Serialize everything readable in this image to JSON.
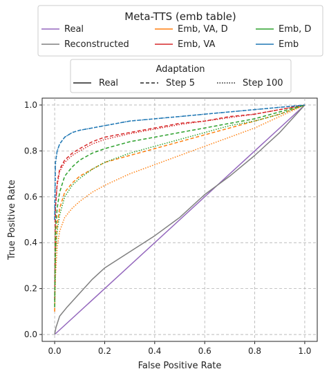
{
  "chart_data": {
    "type": "line",
    "title": "",
    "xlabel": "False Positive Rate",
    "ylabel": "True Positive Rate",
    "xlim": [
      -0.05,
      1.05
    ],
    "ylim": [
      -0.03,
      1.03
    ],
    "xticks": [
      0.0,
      0.2,
      0.4,
      0.6,
      0.8,
      1.0
    ],
    "yticks": [
      0.0,
      0.2,
      0.4,
      0.6,
      0.8,
      1.0
    ],
    "tick_labels": [
      "0.0",
      "0.2",
      "0.4",
      "0.6",
      "0.8",
      "1.0"
    ],
    "grid": true,
    "legend_series": {
      "title": "Meta-TTS (emb table)",
      "placement": "top",
      "entries": [
        {
          "name": "Real",
          "color": "#9467bd"
        },
        {
          "name": "Reconstructed",
          "color": "#7f7f7f"
        },
        {
          "name": "Emb, VA, D",
          "color": "#ff7f0e"
        },
        {
          "name": "Emb, VA",
          "color": "#d62728"
        },
        {
          "name": "Emb, D",
          "color": "#2ca02c"
        },
        {
          "name": "Emb",
          "color": "#1f77b4"
        }
      ]
    },
    "legend_style": {
      "title": "Adaptation",
      "placement": "top",
      "entries": [
        {
          "name": "Real",
          "dash": "solid"
        },
        {
          "name": "Step 5",
          "dash": "dashed"
        },
        {
          "name": "Step 100",
          "dash": "dotted"
        }
      ]
    },
    "series": [
      {
        "name": "Real",
        "color": "#9467bd",
        "dash": "solid",
        "x": [
          0,
          1
        ],
        "y": [
          0,
          1
        ]
      },
      {
        "name": "Reconstructed",
        "color": "#7f7f7f",
        "dash": "solid",
        "x": [
          0,
          0.005,
          0.02,
          0.05,
          0.1,
          0.15,
          0.2,
          0.3,
          0.4,
          0.5,
          0.6,
          0.7,
          0.8,
          0.9,
          0.95,
          1.0
        ],
        "y": [
          0,
          0.03,
          0.08,
          0.12,
          0.18,
          0.24,
          0.29,
          0.36,
          0.43,
          0.51,
          0.61,
          0.69,
          0.78,
          0.88,
          0.94,
          1.0
        ]
      },
      {
        "name": "Emb, VA, D",
        "color": "#ff7f0e",
        "dash": "dashed",
        "x": [
          0,
          0.003,
          0.01,
          0.02,
          0.04,
          0.07,
          0.1,
          0.15,
          0.2,
          0.3,
          0.4,
          0.5,
          0.6,
          0.7,
          0.8,
          0.9,
          1.0
        ],
        "y": [
          0.1,
          0.35,
          0.48,
          0.55,
          0.62,
          0.66,
          0.69,
          0.72,
          0.75,
          0.78,
          0.81,
          0.84,
          0.87,
          0.9,
          0.93,
          0.96,
          1.0
        ]
      },
      {
        "name": "Emb, VA, D",
        "color": "#ff7f0e",
        "dash": "dotted",
        "x": [
          0,
          0.003,
          0.01,
          0.02,
          0.04,
          0.07,
          0.1,
          0.15,
          0.2,
          0.3,
          0.4,
          0.5,
          0.6,
          0.7,
          0.8,
          0.9,
          1.0
        ],
        "y": [
          0.1,
          0.25,
          0.38,
          0.45,
          0.51,
          0.55,
          0.58,
          0.62,
          0.65,
          0.7,
          0.74,
          0.78,
          0.82,
          0.86,
          0.9,
          0.95,
          1.0
        ]
      },
      {
        "name": "Emb, VA",
        "color": "#d62728",
        "dash": "dashed",
        "x": [
          0,
          0.003,
          0.01,
          0.02,
          0.04,
          0.07,
          0.1,
          0.15,
          0.2,
          0.3,
          0.4,
          0.5,
          0.6,
          0.7,
          0.8,
          0.9,
          1.0
        ],
        "y": [
          0.15,
          0.55,
          0.66,
          0.72,
          0.76,
          0.79,
          0.81,
          0.84,
          0.86,
          0.88,
          0.9,
          0.92,
          0.93,
          0.95,
          0.96,
          0.98,
          1.0
        ]
      },
      {
        "name": "Emb, VA",
        "color": "#d62728",
        "dash": "dotted",
        "x": [
          0,
          0.003,
          0.01,
          0.02,
          0.04,
          0.07,
          0.1,
          0.15,
          0.2,
          0.3,
          0.4,
          0.5,
          0.6,
          0.7,
          0.8,
          0.9,
          1.0
        ],
        "y": [
          0.15,
          0.55,
          0.65,
          0.71,
          0.75,
          0.78,
          0.8,
          0.83,
          0.85,
          0.875,
          0.895,
          0.915,
          0.93,
          0.945,
          0.96,
          0.98,
          1.0
        ]
      },
      {
        "name": "Emb, D",
        "color": "#2ca02c",
        "dash": "dashed",
        "x": [
          0,
          0.003,
          0.01,
          0.02,
          0.04,
          0.07,
          0.1,
          0.15,
          0.2,
          0.3,
          0.4,
          0.5,
          0.6,
          0.7,
          0.8,
          0.9,
          1.0
        ],
        "y": [
          0.12,
          0.45,
          0.55,
          0.62,
          0.69,
          0.73,
          0.76,
          0.79,
          0.81,
          0.84,
          0.86,
          0.88,
          0.9,
          0.92,
          0.94,
          0.97,
          1.0
        ]
      },
      {
        "name": "Emb, D",
        "color": "#2ca02c",
        "dash": "dotted",
        "x": [
          0,
          0.003,
          0.01,
          0.02,
          0.04,
          0.07,
          0.1,
          0.15,
          0.2,
          0.3,
          0.4,
          0.5,
          0.6,
          0.7,
          0.8,
          0.9,
          1.0
        ],
        "y": [
          0.12,
          0.35,
          0.45,
          0.52,
          0.6,
          0.65,
          0.68,
          0.72,
          0.75,
          0.79,
          0.82,
          0.85,
          0.88,
          0.91,
          0.93,
          0.96,
          1.0
        ]
      },
      {
        "name": "Emb",
        "color": "#1f77b4",
        "dash": "dashed",
        "x": [
          0,
          0.003,
          0.01,
          0.02,
          0.04,
          0.07,
          0.1,
          0.15,
          0.2,
          0.3,
          0.4,
          0.5,
          0.6,
          0.7,
          0.8,
          0.9,
          1.0
        ],
        "y": [
          0.5,
          0.75,
          0.8,
          0.83,
          0.86,
          0.88,
          0.89,
          0.9,
          0.91,
          0.93,
          0.94,
          0.95,
          0.96,
          0.97,
          0.98,
          0.99,
          1.0
        ]
      },
      {
        "name": "Emb",
        "color": "#1f77b4",
        "dash": "dotted",
        "x": [
          0,
          0.003,
          0.01,
          0.02,
          0.04,
          0.07,
          0.1,
          0.15,
          0.2,
          0.3,
          0.4,
          0.5,
          0.6,
          0.7,
          0.8,
          0.9,
          1.0
        ],
        "y": [
          0.5,
          0.74,
          0.8,
          0.83,
          0.86,
          0.88,
          0.89,
          0.9,
          0.91,
          0.93,
          0.94,
          0.95,
          0.96,
          0.97,
          0.98,
          0.99,
          1.0
        ]
      }
    ]
  }
}
